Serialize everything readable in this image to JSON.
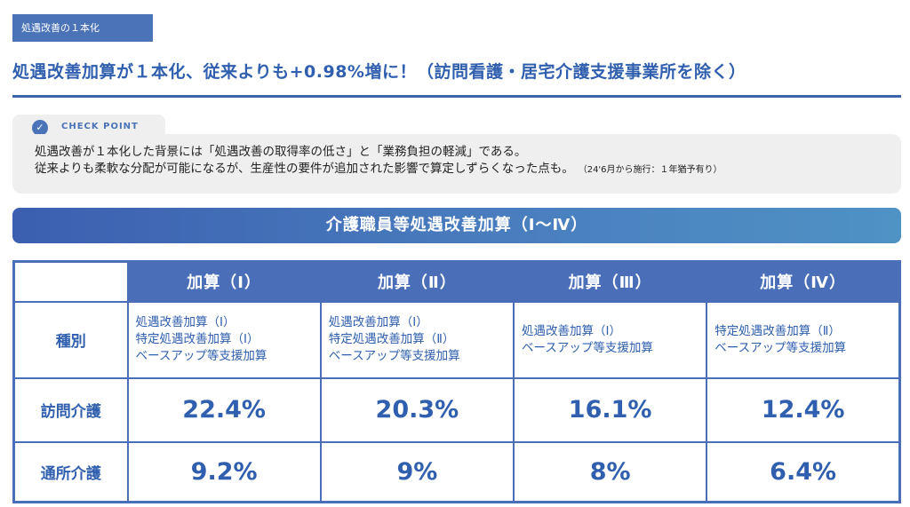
{
  "tag_label": "処遇改善の１本化",
  "headline": "処遇改善加算が１本化、従来よりも+0.98%増に！（訪問看護・居宅介護支援事業所を除く）",
  "check_point": {
    "label": "CHECK POINT",
    "line1": "処遇改善が１本化した背景には「処遇改善の取得率の低さ」と「業務負担の軽減」である。",
    "line2": "従来よりも柔軟な分配が可能になるが、生産性の要件が追加された影響で算定しずらくなった点も。",
    "note": "（24'6月から施行：１年猶予有り）"
  },
  "banner_title": "介護職員等処遇改善加算（Ⅰ〜Ⅳ）",
  "table": {
    "columns": [
      "加算（Ⅰ）",
      "加算（Ⅱ）",
      "加算（Ⅲ）",
      "加算（Ⅳ）"
    ],
    "kind_label": "種別",
    "kinds": [
      [
        "処遇改善加算（Ⅰ）",
        "特定処遇改善加算（Ⅰ）",
        "ベースアップ等支援加算"
      ],
      [
        "処遇改善加算（Ⅰ）",
        "特定処遇改善加算（Ⅱ）",
        "ベースアップ等支援加算"
      ],
      [
        "処遇改善加算（Ⅰ）",
        "ベースアップ等支援加算"
      ],
      [
        "特定処遇改善加算（Ⅱ）",
        "ベースアップ等支援加算"
      ]
    ],
    "rows": [
      {
        "label": "訪問介護",
        "values": [
          "22.4%",
          "20.3%",
          "16.1%",
          "12.4%"
        ]
      },
      {
        "label": "通所介護",
        "values": [
          "9.2%",
          "9%",
          "8%",
          "6.4%"
        ]
      }
    ]
  },
  "colors": {
    "primary": "#4a6fb8",
    "heading_text": "#2f5fae",
    "panel_bg": "#efefef"
  },
  "icons": {
    "check": "check-circle-icon"
  }
}
